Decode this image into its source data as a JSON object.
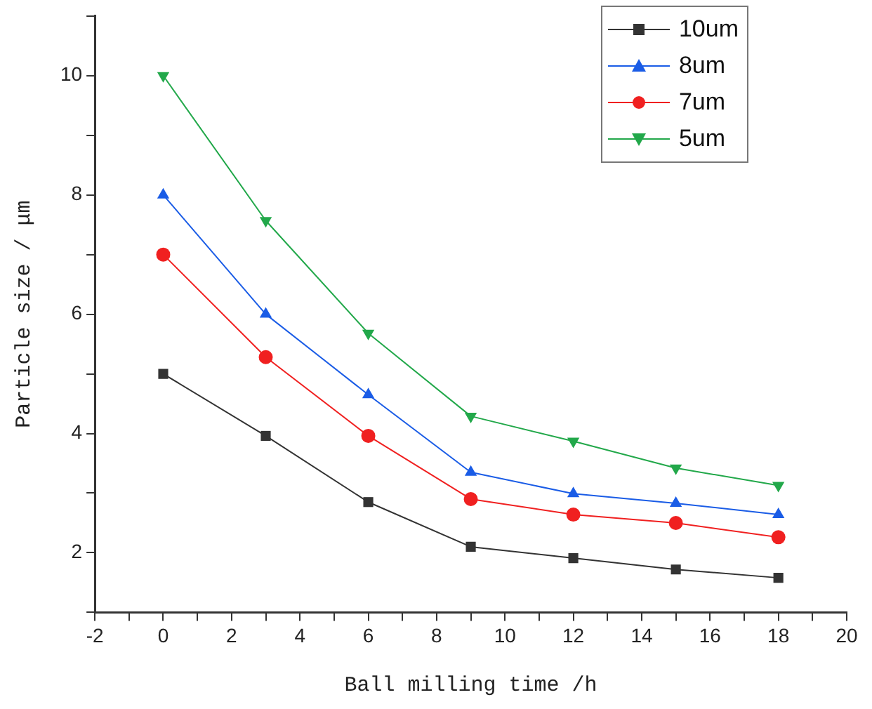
{
  "chart_data": {
    "type": "line",
    "xlabel": "Ball milling time /h",
    "ylabel": "Particle size / μm",
    "x": [
      0,
      3,
      6,
      9,
      12,
      15,
      18
    ],
    "series": [
      {
        "name": "10um",
        "color": "#333333",
        "marker": "square",
        "values": [
          5,
          3.96,
          2.85,
          2.1,
          1.91,
          1.72,
          1.58
        ]
      },
      {
        "name": "8um",
        "color": "#1a5ce6",
        "marker": "triangle",
        "values": [
          8,
          6,
          4.65,
          3.35,
          2.99,
          2.83,
          2.64
        ]
      },
      {
        "name": "7um",
        "color": "#f02020",
        "marker": "circle",
        "values": [
          7,
          5.28,
          3.96,
          2.9,
          2.64,
          2.5,
          2.26
        ]
      },
      {
        "name": "5um",
        "color": "#22a84a",
        "marker": "triangle-down",
        "values": [
          10,
          7.57,
          5.68,
          4.29,
          3.87,
          3.42,
          3.13
        ]
      }
    ],
    "xlim": [
      -2,
      20
    ],
    "xticks": [
      -2,
      {
        "value": -1,
        "label": null
      },
      0,
      {
        "value": 1,
        "label": null
      },
      2,
      {
        "value": 3,
        "label": null
      },
      4,
      {
        "value": 5,
        "label": null
      },
      6,
      {
        "value": 7,
        "label": null
      },
      8,
      {
        "value": 9,
        "label": null
      },
      10,
      {
        "value": 11,
        "label": null
      },
      12,
      {
        "value": 13,
        "label": null
      },
      14,
      {
        "value": 15,
        "label": null
      },
      16,
      {
        "value": 17,
        "label": null
      },
      18,
      {
        "value": 19,
        "label": null
      },
      20
    ],
    "ylim": [
      1,
      11
    ],
    "yticks": [
      {
        "value": 1,
        "label": null
      },
      2,
      {
        "value": 3,
        "label": null
      },
      4,
      {
        "value": 5,
        "label": null
      },
      6,
      {
        "value": 7,
        "label": null
      },
      8,
      {
        "value": 9,
        "label": null
      },
      10,
      {
        "value": 11,
        "label": null
      }
    ],
    "grid": false,
    "legend": "top right",
    "line_style": "solid"
  }
}
